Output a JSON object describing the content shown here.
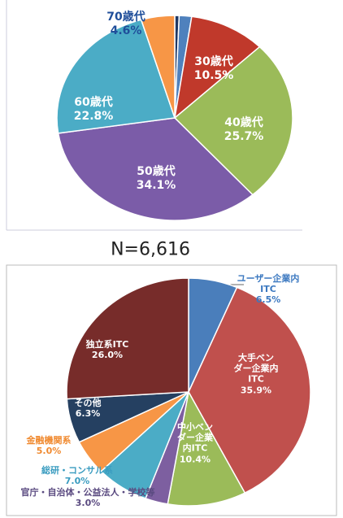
{
  "caption": "N=6,616",
  "chart_data": [
    {
      "type": "pie",
      "categories": [
        null,
        null,
        "30歳代",
        "40歳代",
        "50歳代",
        "60歳代",
        "70歳代"
      ],
      "values": [
        0.6,
        1.7,
        10.5,
        25.7,
        34.1,
        22.8,
        4.6
      ],
      "value_labels": [
        null,
        null,
        "10.5%",
        "25.7%",
        "34.1%",
        "22.8%",
        "4.6%"
      ],
      "colors": [
        "#1f3864",
        "#4f81bd",
        "#c0392b",
        "#9bbb59",
        "#7b5ca8",
        "#4bacc6",
        "#f79646"
      ]
    },
    {
      "type": "pie",
      "categories": [
        "ユーザー企業内\nITC",
        "大手ベン\nダー企業内\nITC",
        "中小ベン\nダー企業\n内ITC",
        "官庁・自治体・公益法人・学校等",
        "総研・コンサル系",
        "金融機関系",
        "その他",
        "独立系ITC"
      ],
      "values": [
        6.5,
        35.9,
        10.4,
        3.0,
        7.0,
        5.0,
        6.3,
        26.0
      ],
      "value_labels": [
        "6.5%",
        "35.9%",
        "10.4%",
        "3.0%",
        "7.0%",
        "5.0%",
        "6.3%",
        "26.0%"
      ],
      "colors": [
        "#4a7ebb",
        "#c0504d",
        "#9bbb59",
        "#7d5fa0",
        "#4bacc6",
        "#f79646",
        "#254061",
        "#772c2a"
      ]
    }
  ]
}
